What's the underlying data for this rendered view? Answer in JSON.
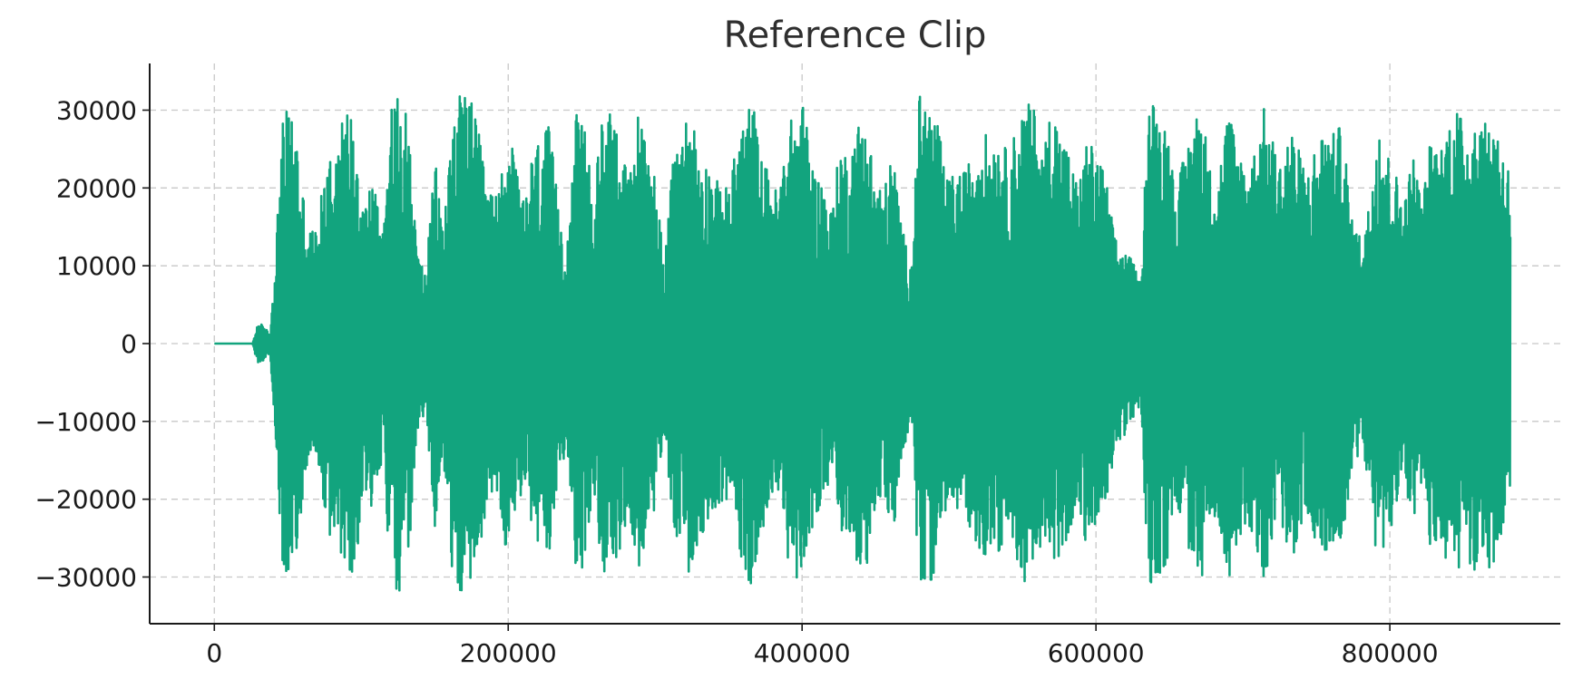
{
  "chart_data": {
    "type": "line",
    "title": "Reference Clip",
    "xlabel": "",
    "ylabel": "",
    "xlim": [
      -44000,
      916000
    ],
    "ylim": [
      -36000,
      36000
    ],
    "x_ticks": [
      0,
      200000,
      400000,
      600000,
      800000
    ],
    "y_ticks": [
      -30000,
      -20000,
      -10000,
      0,
      10000,
      20000,
      30000
    ],
    "grid": true,
    "color": "#12a47e",
    "series": [
      {
        "x_start": 0,
        "x_end": 882000,
        "silence_until": 26000,
        "envelope": [
          [
            0,
            0
          ],
          [
            26000,
            0
          ],
          [
            30000,
            3000
          ],
          [
            34000,
            2000
          ],
          [
            38000,
            1500
          ],
          [
            42000,
            13000
          ],
          [
            46000,
            28000
          ],
          [
            50000,
            30500
          ],
          [
            55000,
            29000
          ],
          [
            60000,
            20000
          ],
          [
            64000,
            15000
          ],
          [
            70000,
            14500
          ],
          [
            76000,
            24000
          ],
          [
            82000,
            26000
          ],
          [
            90000,
            30500
          ],
          [
            96000,
            29000
          ],
          [
            102000,
            18000
          ],
          [
            108000,
            22000
          ],
          [
            114000,
            15000
          ],
          [
            120000,
            30000
          ],
          [
            126000,
            32500
          ],
          [
            132000,
            29000
          ],
          [
            138000,
            12000
          ],
          [
            144000,
            9000
          ],
          [
            150000,
            24000
          ],
          [
            156000,
            15000
          ],
          [
            162000,
            30000
          ],
          [
            168000,
            32500
          ],
          [
            174000,
            32000
          ],
          [
            180000,
            27000
          ],
          [
            186000,
            20000
          ],
          [
            192000,
            19000
          ],
          [
            198000,
            26000
          ],
          [
            204000,
            25000
          ],
          [
            210000,
            18000
          ],
          [
            216000,
            24000
          ],
          [
            222000,
            27000
          ],
          [
            228000,
            28000
          ],
          [
            234000,
            18000
          ],
          [
            240000,
            13000
          ],
          [
            246000,
            29500
          ],
          [
            252000,
            28500
          ],
          [
            258000,
            18000
          ],
          [
            264000,
            30000
          ],
          [
            270000,
            31000
          ],
          [
            276000,
            27000
          ],
          [
            282000,
            21000
          ],
          [
            288000,
            30000
          ],
          [
            294000,
            26000
          ],
          [
            300000,
            22000
          ],
          [
            306000,
            11000
          ],
          [
            312000,
            23000
          ],
          [
            318000,
            27000
          ],
          [
            324000,
            31000
          ],
          [
            330000,
            25000
          ],
          [
            336000,
            23000
          ],
          [
            342000,
            21000
          ],
          [
            348000,
            20000
          ],
          [
            354000,
            24000
          ],
          [
            360000,
            29000
          ],
          [
            366000,
            32000
          ],
          [
            372000,
            24000
          ],
          [
            378000,
            22000
          ],
          [
            384000,
            19000
          ],
          [
            390000,
            28000
          ],
          [
            396000,
            30000
          ],
          [
            402000,
            31000
          ],
          [
            408000,
            22000
          ],
          [
            414000,
            21000
          ],
          [
            420000,
            17000
          ],
          [
            426000,
            26000
          ],
          [
            432000,
            24000
          ],
          [
            438000,
            28500
          ],
          [
            444000,
            29000
          ],
          [
            450000,
            21000
          ],
          [
            456000,
            20000
          ],
          [
            462000,
            25000
          ],
          [
            468000,
            15000
          ],
          [
            474000,
            10000
          ],
          [
            480000,
            32500
          ],
          [
            486000,
            31000
          ],
          [
            492000,
            29000
          ],
          [
            498000,
            21000
          ],
          [
            504000,
            22000
          ],
          [
            510000,
            22000
          ],
          [
            516000,
            24500
          ],
          [
            522000,
            28000
          ],
          [
            528000,
            26000
          ],
          [
            534000,
            27000
          ],
          [
            540000,
            24500
          ],
          [
            546000,
            28000
          ],
          [
            552000,
            31000
          ],
          [
            558000,
            30500
          ],
          [
            564000,
            24000
          ],
          [
            570000,
            32000
          ],
          [
            576000,
            27000
          ],
          [
            582000,
            24500
          ],
          [
            588000,
            20000
          ],
          [
            594000,
            27000
          ],
          [
            600000,
            24000
          ],
          [
            606000,
            22500
          ],
          [
            612000,
            14500
          ],
          [
            618000,
            12000
          ],
          [
            624000,
            11000
          ],
          [
            630000,
            8000
          ],
          [
            636000,
            32500
          ],
          [
            642000,
            30000
          ],
          [
            648000,
            29000
          ],
          [
            654000,
            20000
          ],
          [
            660000,
            24000
          ],
          [
            666000,
            29000
          ],
          [
            672000,
            31000
          ],
          [
            678000,
            22000
          ],
          [
            684000,
            23000
          ],
          [
            690000,
            30500
          ],
          [
            696000,
            26000
          ],
          [
            702000,
            23000
          ],
          [
            708000,
            25000
          ],
          [
            714000,
            30500
          ],
          [
            720000,
            26500
          ],
          [
            726000,
            23000
          ],
          [
            732000,
            28500
          ],
          [
            738000,
            25000
          ],
          [
            744000,
            22000
          ],
          [
            750000,
            26000
          ],
          [
            756000,
            28000
          ],
          [
            762000,
            27000
          ],
          [
            768000,
            28500
          ],
          [
            774000,
            16000
          ],
          [
            780000,
            14000
          ],
          [
            786000,
            18000
          ],
          [
            792000,
            30500
          ],
          [
            798000,
            25000
          ],
          [
            804000,
            22000
          ],
          [
            810000,
            19000
          ],
          [
            816000,
            24500
          ],
          [
            822000,
            18000
          ],
          [
            828000,
            27000
          ],
          [
            834000,
            25000
          ],
          [
            840000,
            29000
          ],
          [
            846000,
            30500
          ],
          [
            852000,
            27000
          ],
          [
            858000,
            30500
          ],
          [
            864000,
            28000
          ],
          [
            870000,
            30000
          ],
          [
            876000,
            26000
          ],
          [
            882000,
            22000
          ]
        ]
      }
    ]
  }
}
